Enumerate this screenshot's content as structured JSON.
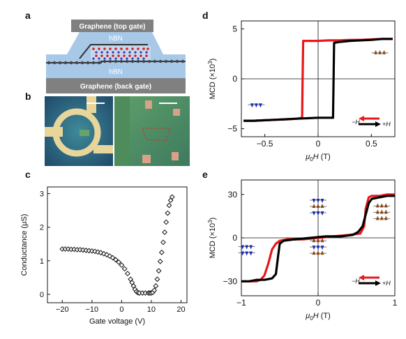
{
  "panels": {
    "a": {
      "letter": "a",
      "top_gate": "Graphene (top gate)",
      "hbn_top": "hBN",
      "hbn_bottom": "hBN",
      "back_gate": "Graphene (back gate)"
    },
    "b": {
      "letter": "b"
    },
    "c": {
      "letter": "c"
    },
    "d": {
      "letter": "d"
    },
    "e": {
      "letter": "e"
    }
  },
  "colors": {
    "sweep_down": "#e8181b",
    "sweep_up": "#000000",
    "graphene": "#8a8a8a",
    "hbn": "#a8c8e8",
    "spin_up_top": "#8b4513",
    "spin_down": "#1a2db5"
  },
  "chart_data": [
    {
      "panel": "c",
      "type": "scatter",
      "xlabel": "Gate voltage (V)",
      "ylabel": "Conductance (μS)",
      "xlim": [
        -25,
        22
      ],
      "ylim": [
        -0.25,
        3.2
      ],
      "xticks": [
        -20,
        -10,
        0,
        10,
        20
      ],
      "yticks": [
        0,
        1,
        2,
        3
      ],
      "marker": "open-diamond",
      "series": [
        {
          "x": [
            -20,
            -19,
            -18,
            -17,
            -16,
            -15,
            -14,
            -13,
            -12,
            -11,
            -10,
            -9,
            -8,
            -7,
            -6,
            -5,
            -4,
            -3,
            -2,
            -1,
            0,
            1,
            2,
            3,
            3.5,
            4,
            4.5,
            5,
            5.5,
            6,
            7,
            8,
            9,
            9.5,
            10,
            10.5,
            11,
            11.5,
            12,
            12.5,
            13,
            13.5,
            14,
            14.5,
            15,
            15.5,
            16,
            16.5,
            17
          ],
          "y": [
            1.35,
            1.35,
            1.35,
            1.34,
            1.34,
            1.33,
            1.33,
            1.32,
            1.31,
            1.3,
            1.29,
            1.28,
            1.26,
            1.24,
            1.21,
            1.18,
            1.14,
            1.09,
            1.03,
            0.96,
            0.87,
            0.76,
            0.62,
            0.45,
            0.35,
            0.25,
            0.15,
            0.08,
            0.05,
            0.04,
            0.04,
            0.04,
            0.04,
            0.04,
            0.04,
            0.06,
            0.12,
            0.25,
            0.45,
            0.7,
            0.98,
            1.25,
            1.55,
            1.85,
            2.15,
            2.42,
            2.65,
            2.8,
            2.9
          ]
        }
      ]
    },
    {
      "panel": "d",
      "type": "line",
      "xlabel": "μ0H (T)",
      "ylabel": "MCD (×10³)",
      "xlim": [
        -0.72,
        0.72
      ],
      "ylim": [
        -5.8,
        5.8
      ],
      "xticks": [
        -0.5,
        0,
        0.5
      ],
      "xtick_labels": [
        "−0.5",
        "0",
        "0.5"
      ],
      "yticks": [
        -5,
        0,
        5
      ],
      "yticks_labels": [
        "−5",
        "0",
        "5"
      ],
      "legend": [
        "−H",
        "+H"
      ],
      "series": [
        {
          "name": "−H",
          "color": "#e8181b",
          "x": [
            0.7,
            0.6,
            0.5,
            0.4,
            0.3,
            0.2,
            0.1,
            0.0,
            -0.1,
            -0.14,
            -0.145,
            -0.15,
            -0.2,
            -0.3,
            -0.4,
            -0.5,
            -0.6,
            -0.7
          ],
          "y": [
            4.0,
            4.0,
            3.95,
            3.9,
            3.9,
            3.85,
            3.85,
            3.8,
            3.8,
            3.8,
            0,
            -3.9,
            -4.0,
            -4.05,
            -4.1,
            -4.15,
            -4.2,
            -4.2
          ]
        },
        {
          "name": "+H",
          "color": "#000000",
          "x": [
            -0.7,
            -0.6,
            -0.5,
            -0.4,
            -0.3,
            -0.2,
            -0.1,
            0.0,
            0.1,
            0.14,
            0.145,
            0.15,
            0.2,
            0.3,
            0.4,
            0.5,
            0.6,
            0.7
          ],
          "y": [
            -4.2,
            -4.2,
            -4.15,
            -4.1,
            -4.05,
            -4.0,
            -3.95,
            -3.9,
            -3.9,
            -3.9,
            0,
            3.6,
            3.7,
            3.8,
            3.85,
            3.9,
            4.0,
            4.0
          ]
        }
      ]
    },
    {
      "panel": "e",
      "type": "line",
      "xlabel": "μ0H (T)",
      "ylabel": "MCD (×10³)",
      "xlim": [
        -1,
        1
      ],
      "ylim": [
        -40,
        40
      ],
      "xticks": [
        -1,
        0,
        1
      ],
      "xtick_labels": [
        "−1",
        "0",
        "1"
      ],
      "yticks": [
        -30,
        0,
        30
      ],
      "ytick_labels": [
        "−30",
        "0",
        "30"
      ],
      "legend": [
        "−H",
        "+H"
      ],
      "series": [
        {
          "name": "−H",
          "color": "#e8181b",
          "x": [
            1.0,
            0.9,
            0.8,
            0.7,
            0.66,
            0.62,
            0.6,
            0.55,
            0.4,
            0.2,
            0.0,
            -0.2,
            -0.4,
            -0.5,
            -0.55,
            -0.6,
            -0.65,
            -0.7,
            -0.75,
            -0.8,
            -0.9,
            -1.0
          ],
          "y": [
            30,
            30,
            29,
            29,
            28,
            20,
            8,
            3,
            2,
            1,
            0,
            -1,
            -1,
            -2,
            -4,
            -8,
            -18,
            -26,
            -29,
            -30,
            -30,
            -30
          ]
        },
        {
          "name": "+H",
          "color": "#000000",
          "x": [
            -1.0,
            -0.9,
            -0.8,
            -0.7,
            -0.6,
            -0.55,
            -0.52,
            -0.5,
            -0.45,
            -0.3,
            -0.1,
            0.1,
            0.3,
            0.45,
            0.52,
            0.58,
            0.62,
            0.66,
            0.7,
            0.8,
            0.9,
            1.0
          ],
          "y": [
            -30,
            -30,
            -29,
            -29,
            -28,
            -25,
            -12,
            -4,
            -2,
            -1,
            0,
            1,
            1,
            2,
            4,
            8,
            16,
            24,
            27,
            28,
            29,
            29
          ]
        }
      ]
    }
  ]
}
